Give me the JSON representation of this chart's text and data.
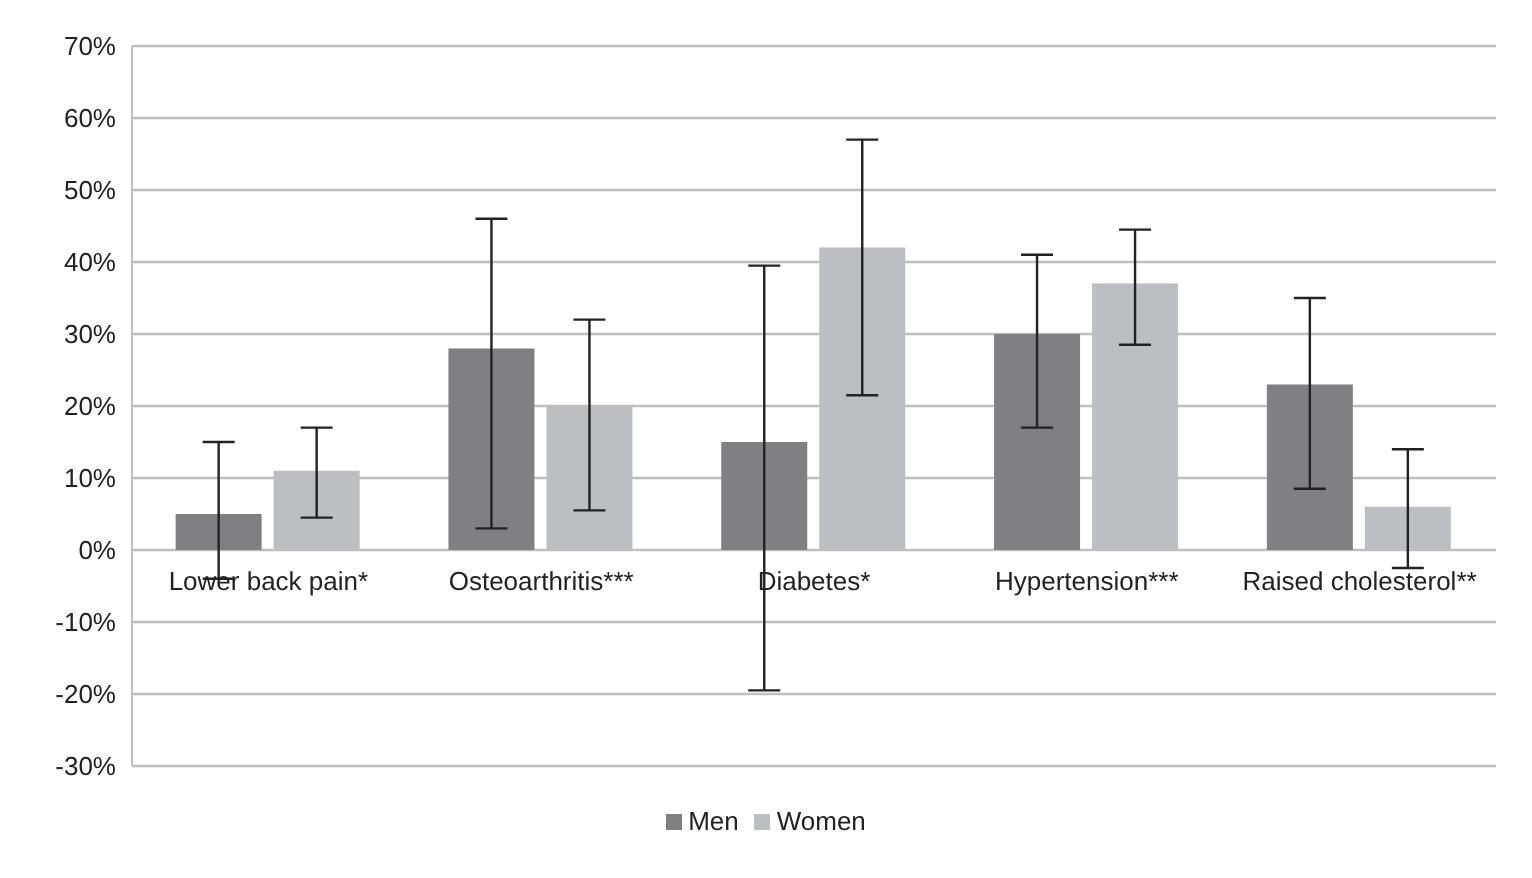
{
  "chart_data": {
    "type": "bar",
    "categories": [
      "Lower back pain*",
      "Osteoarthritis***",
      "Diabetes*",
      "Hypertension***",
      "Raised cholesterol**"
    ],
    "series": [
      {
        "name": "Men",
        "color": "#808083",
        "values": [
          5,
          28,
          15,
          30,
          23
        ],
        "errors": [
          [
            -4,
            15
          ],
          [
            3,
            46
          ],
          [
            -19.5,
            39.5
          ],
          [
            17,
            41
          ],
          [
            8.5,
            35
          ]
        ]
      },
      {
        "name": "Women",
        "color": "#bdbec1",
        "values": [
          11,
          20,
          42,
          37,
          6
        ],
        "errors": [
          [
            4.5,
            17
          ],
          [
            5.5,
            32
          ],
          [
            21.5,
            57
          ],
          [
            28.5,
            44.5
          ],
          [
            -2.5,
            14
          ]
        ]
      }
    ],
    "ylim": [
      -30,
      70
    ],
    "yticks": [
      {
        "value": -30,
        "label": "-30%"
      },
      {
        "value": -20,
        "label": "-20%"
      },
      {
        "value": -10,
        "label": "-10%"
      },
      {
        "value": 0,
        "label": "0%"
      },
      {
        "value": 10,
        "label": "10%"
      },
      {
        "value": 20,
        "label": "20%"
      },
      {
        "value": 30,
        "label": "30%"
      },
      {
        "value": 40,
        "label": "40%"
      },
      {
        "value": 50,
        "label": "50%"
      },
      {
        "value": 60,
        "label": "60%"
      },
      {
        "value": 70,
        "label": "70%"
      }
    ],
    "grid": "y",
    "legend": "bottom"
  }
}
